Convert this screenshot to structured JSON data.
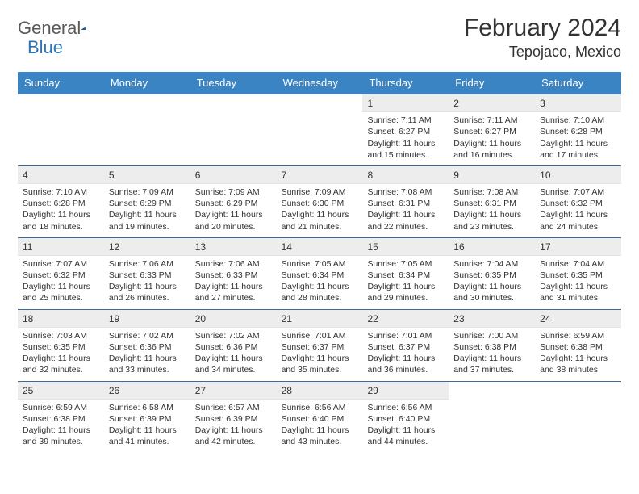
{
  "brand": {
    "name1": "General",
    "name2": "Blue"
  },
  "title": "February 2024",
  "location": "Tepojaco, Mexico",
  "colors": {
    "header_bg": "#3a84c4",
    "row_border": "#3a6a9a",
    "daynum_bg": "#ededed",
    "text": "#333333",
    "logo_blue": "#2f74b5"
  },
  "weekdays": [
    "Sunday",
    "Monday",
    "Tuesday",
    "Wednesday",
    "Thursday",
    "Friday",
    "Saturday"
  ],
  "weeks": [
    [
      null,
      null,
      null,
      null,
      {
        "d": 1,
        "sr": "7:11 AM",
        "ss": "6:27 PM",
        "dl1": "Daylight: 11 hours",
        "dl2": "and 15 minutes."
      },
      {
        "d": 2,
        "sr": "7:11 AM",
        "ss": "6:27 PM",
        "dl1": "Daylight: 11 hours",
        "dl2": "and 16 minutes."
      },
      {
        "d": 3,
        "sr": "7:10 AM",
        "ss": "6:28 PM",
        "dl1": "Daylight: 11 hours",
        "dl2": "and 17 minutes."
      }
    ],
    [
      {
        "d": 4,
        "sr": "7:10 AM",
        "ss": "6:28 PM",
        "dl1": "Daylight: 11 hours",
        "dl2": "and 18 minutes."
      },
      {
        "d": 5,
        "sr": "7:09 AM",
        "ss": "6:29 PM",
        "dl1": "Daylight: 11 hours",
        "dl2": "and 19 minutes."
      },
      {
        "d": 6,
        "sr": "7:09 AM",
        "ss": "6:29 PM",
        "dl1": "Daylight: 11 hours",
        "dl2": "and 20 minutes."
      },
      {
        "d": 7,
        "sr": "7:09 AM",
        "ss": "6:30 PM",
        "dl1": "Daylight: 11 hours",
        "dl2": "and 21 minutes."
      },
      {
        "d": 8,
        "sr": "7:08 AM",
        "ss": "6:31 PM",
        "dl1": "Daylight: 11 hours",
        "dl2": "and 22 minutes."
      },
      {
        "d": 9,
        "sr": "7:08 AM",
        "ss": "6:31 PM",
        "dl1": "Daylight: 11 hours",
        "dl2": "and 23 minutes."
      },
      {
        "d": 10,
        "sr": "7:07 AM",
        "ss": "6:32 PM",
        "dl1": "Daylight: 11 hours",
        "dl2": "and 24 minutes."
      }
    ],
    [
      {
        "d": 11,
        "sr": "7:07 AM",
        "ss": "6:32 PM",
        "dl1": "Daylight: 11 hours",
        "dl2": "and 25 minutes."
      },
      {
        "d": 12,
        "sr": "7:06 AM",
        "ss": "6:33 PM",
        "dl1": "Daylight: 11 hours",
        "dl2": "and 26 minutes."
      },
      {
        "d": 13,
        "sr": "7:06 AM",
        "ss": "6:33 PM",
        "dl1": "Daylight: 11 hours",
        "dl2": "and 27 minutes."
      },
      {
        "d": 14,
        "sr": "7:05 AM",
        "ss": "6:34 PM",
        "dl1": "Daylight: 11 hours",
        "dl2": "and 28 minutes."
      },
      {
        "d": 15,
        "sr": "7:05 AM",
        "ss": "6:34 PM",
        "dl1": "Daylight: 11 hours",
        "dl2": "and 29 minutes."
      },
      {
        "d": 16,
        "sr": "7:04 AM",
        "ss": "6:35 PM",
        "dl1": "Daylight: 11 hours",
        "dl2": "and 30 minutes."
      },
      {
        "d": 17,
        "sr": "7:04 AM",
        "ss": "6:35 PM",
        "dl1": "Daylight: 11 hours",
        "dl2": "and 31 minutes."
      }
    ],
    [
      {
        "d": 18,
        "sr": "7:03 AM",
        "ss": "6:35 PM",
        "dl1": "Daylight: 11 hours",
        "dl2": "and 32 minutes."
      },
      {
        "d": 19,
        "sr": "7:02 AM",
        "ss": "6:36 PM",
        "dl1": "Daylight: 11 hours",
        "dl2": "and 33 minutes."
      },
      {
        "d": 20,
        "sr": "7:02 AM",
        "ss": "6:36 PM",
        "dl1": "Daylight: 11 hours",
        "dl2": "and 34 minutes."
      },
      {
        "d": 21,
        "sr": "7:01 AM",
        "ss": "6:37 PM",
        "dl1": "Daylight: 11 hours",
        "dl2": "and 35 minutes."
      },
      {
        "d": 22,
        "sr": "7:01 AM",
        "ss": "6:37 PM",
        "dl1": "Daylight: 11 hours",
        "dl2": "and 36 minutes."
      },
      {
        "d": 23,
        "sr": "7:00 AM",
        "ss": "6:38 PM",
        "dl1": "Daylight: 11 hours",
        "dl2": "and 37 minutes."
      },
      {
        "d": 24,
        "sr": "6:59 AM",
        "ss": "6:38 PM",
        "dl1": "Daylight: 11 hours",
        "dl2": "and 38 minutes."
      }
    ],
    [
      {
        "d": 25,
        "sr": "6:59 AM",
        "ss": "6:38 PM",
        "dl1": "Daylight: 11 hours",
        "dl2": "and 39 minutes."
      },
      {
        "d": 26,
        "sr": "6:58 AM",
        "ss": "6:39 PM",
        "dl1": "Daylight: 11 hours",
        "dl2": "and 41 minutes."
      },
      {
        "d": 27,
        "sr": "6:57 AM",
        "ss": "6:39 PM",
        "dl1": "Daylight: 11 hours",
        "dl2": "and 42 minutes."
      },
      {
        "d": 28,
        "sr": "6:56 AM",
        "ss": "6:40 PM",
        "dl1": "Daylight: 11 hours",
        "dl2": "and 43 minutes."
      },
      {
        "d": 29,
        "sr": "6:56 AM",
        "ss": "6:40 PM",
        "dl1": "Daylight: 11 hours",
        "dl2": "and 44 minutes."
      },
      null,
      null
    ]
  ],
  "labels": {
    "sunrise": "Sunrise: ",
    "sunset": "Sunset: "
  }
}
